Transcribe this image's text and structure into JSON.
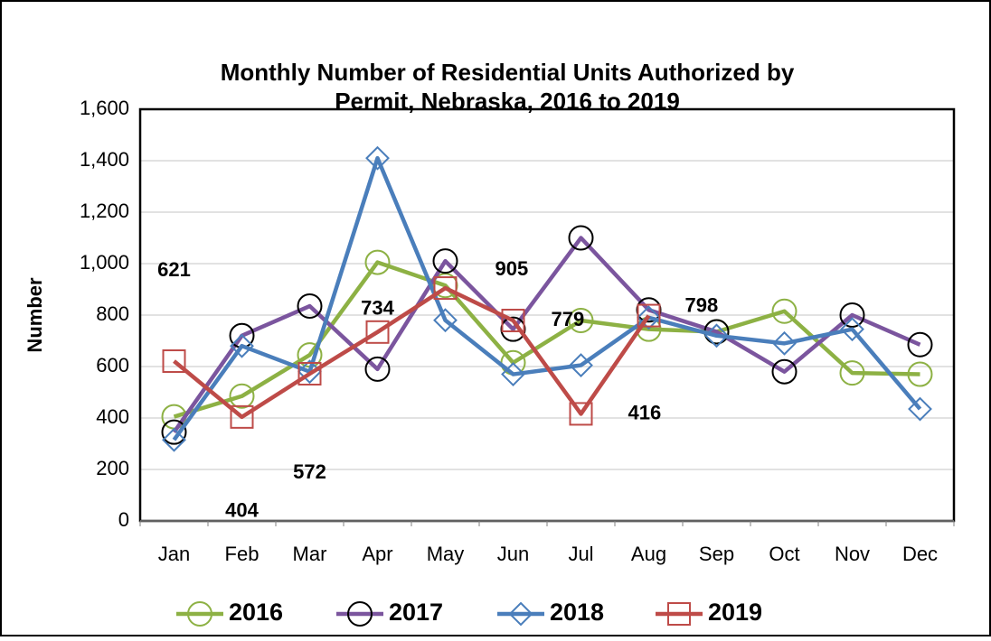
{
  "chart_data": {
    "type": "line",
    "title": [
      "Monthly Number of Residential Units Authorized by",
      "Permit, Nebraska, 2016 to 2019"
    ],
    "y_label": "Number",
    "categories": [
      "Jan",
      "Feb",
      "Mar",
      "Apr",
      "May",
      "Jun",
      "Jul",
      "Aug",
      "Sep",
      "Oct",
      "Nov",
      "Dec"
    ],
    "series": [
      {
        "name": "2016",
        "color": "#8db144",
        "marker": "circle",
        "marker_color": "#8db144",
        "values": [
          405,
          485,
          645,
          1005,
          915,
          615,
          779,
          745,
          735,
          815,
          575,
          570
        ]
      },
      {
        "name": "2017",
        "color": "#7b559e",
        "marker": "circle",
        "marker_color": "#000000",
        "values": [
          345,
          720,
          835,
          590,
          1010,
          745,
          1100,
          820,
          735,
          580,
          800,
          685
        ]
      },
      {
        "name": "2018",
        "color": "#4a7ebb",
        "marker": "diamond",
        "marker_color": "#4a7ebb",
        "values": [
          315,
          680,
          580,
          1410,
          780,
          570,
          605,
          790,
          720,
          690,
          745,
          435
        ]
      },
      {
        "name": "2019",
        "color": "#be4b48",
        "marker": "square",
        "marker_color": "#be4b48",
        "values": [
          621,
          404,
          572,
          734,
          905,
          779,
          416,
          798,
          null,
          null,
          null,
          null
        ],
        "show_value_labels": true
      }
    ],
    "ylim": [
      0,
      1600
    ],
    "yticks": [
      0,
      200,
      400,
      600,
      800,
      {
        "value": 1000,
        "label": "1,000"
      },
      {
        "value": 1200,
        "label": "1,200"
      },
      {
        "value": 1400,
        "label": "1,400"
      },
      {
        "value": 1600,
        "label": "1,600"
      }
    ],
    "grid": true,
    "legend": "bottom"
  }
}
